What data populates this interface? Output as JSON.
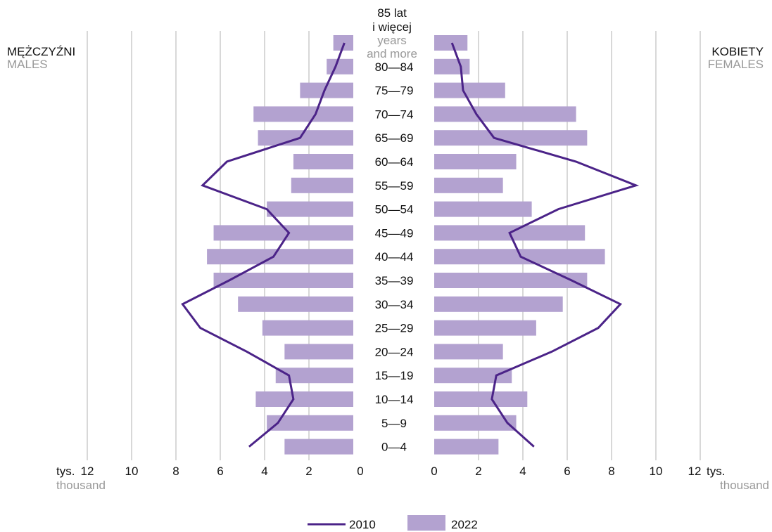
{
  "colors": {
    "bar_2022": "#b3a2d0",
    "line_2010": "#4b2388",
    "grid": "#b0b0b0",
    "text": "#111111",
    "subtext": "#999999"
  },
  "labels": {
    "left_pl": "MĘŻCZYŹNI",
    "left_en": "MALES",
    "right_pl": "KOBIETY",
    "right_en": "FEMALES",
    "unit_pl": "tys.",
    "unit_en": "thousand",
    "top_age_pl_1": "85 lat",
    "top_age_pl_2": "i więcej",
    "top_age_en_1": "years",
    "top_age_en_2": "and more"
  },
  "legend": [
    {
      "label": "2010",
      "kind": "line"
    },
    {
      "label": "2022",
      "kind": "bar"
    }
  ],
  "chart_data": {
    "type": "bar",
    "subtype": "population pyramid",
    "categories": [
      "85+",
      "80—84",
      "75—79",
      "70—74",
      "65—69",
      "60—64",
      "55—59",
      "50—54",
      "45—49",
      "40—44",
      "35—39",
      "30—34",
      "25—29",
      "20—24",
      "15—19",
      "10—14",
      "5—9",
      "0—4"
    ],
    "category_labels": [
      "",
      "80—84",
      "75—79",
      "70—74",
      "65—69",
      "60—64",
      "55—59",
      "50—54",
      "45—49",
      "40—44",
      "35—39",
      "30—34",
      "25—29",
      "20—24",
      "15—19",
      "10—14",
      "5—9",
      "0—4"
    ],
    "xlim": [
      0,
      12
    ],
    "ticks": [
      0,
      2,
      4,
      6,
      8,
      10,
      12
    ],
    "males": {
      "2022": [
        0.9,
        1.2,
        2.4,
        4.5,
        4.3,
        2.7,
        2.8,
        3.9,
        6.3,
        6.6,
        6.3,
        5.2,
        4.1,
        3.1,
        3.5,
        4.4,
        3.9,
        3.1
      ],
      "2010": [
        0.4,
        0.8,
        1.3,
        1.7,
        2.4,
        5.7,
        6.8,
        3.9,
        2.9,
        3.6,
        5.6,
        7.7,
        6.9,
        4.8,
        2.9,
        2.7,
        3.4,
        4.7
      ]
    },
    "females": {
      "2022": [
        1.5,
        1.6,
        3.2,
        6.4,
        6.9,
        3.7,
        3.1,
        4.4,
        6.8,
        7.7,
        6.9,
        5.8,
        4.6,
        3.1,
        3.5,
        4.2,
        3.7,
        2.9
      ],
      "2010": [
        0.8,
        1.2,
        1.3,
        1.9,
        2.7,
        6.4,
        9.1,
        5.6,
        3.4,
        3.9,
        6.2,
        8.4,
        7.4,
        5.3,
        2.8,
        2.6,
        3.3,
        4.5
      ]
    },
    "series": [
      {
        "name": "2010",
        "style": "line"
      },
      {
        "name": "2022",
        "style": "bar"
      }
    ],
    "grid": true,
    "legend_position": "bottom"
  }
}
